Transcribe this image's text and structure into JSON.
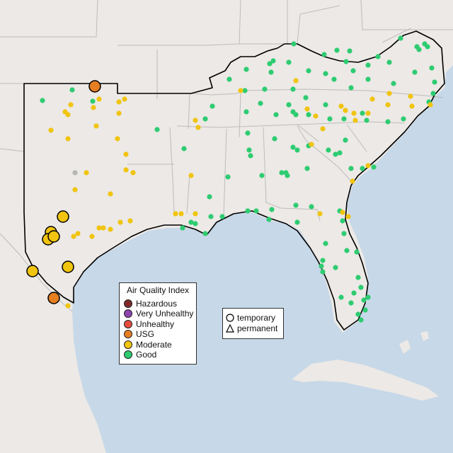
{
  "legend": {
    "title": "Air Quality Index",
    "categories": [
      {
        "label": "Hazardous",
        "color": "#7e2a2a"
      },
      {
        "label": "Very Unhealthy",
        "color": "#8e44ad"
      },
      {
        "label": "Unhealthy",
        "color": "#e74c3c"
      },
      {
        "label": "USG",
        "color": "#e67e22"
      },
      {
        "label": "Moderate",
        "color": "#f1c40f"
      },
      {
        "label": "Good",
        "color": "#2ecc71"
      }
    ]
  },
  "monitor_types": {
    "temporary_label": "temporary",
    "permanent_label": "permanent"
  },
  "colors": {
    "land": "#ece9e6",
    "water": "#c7d8e8",
    "region_outline": "#000000",
    "state_border": "#bdbdbd",
    "gray_monitor": "#b5b5b5"
  }
}
